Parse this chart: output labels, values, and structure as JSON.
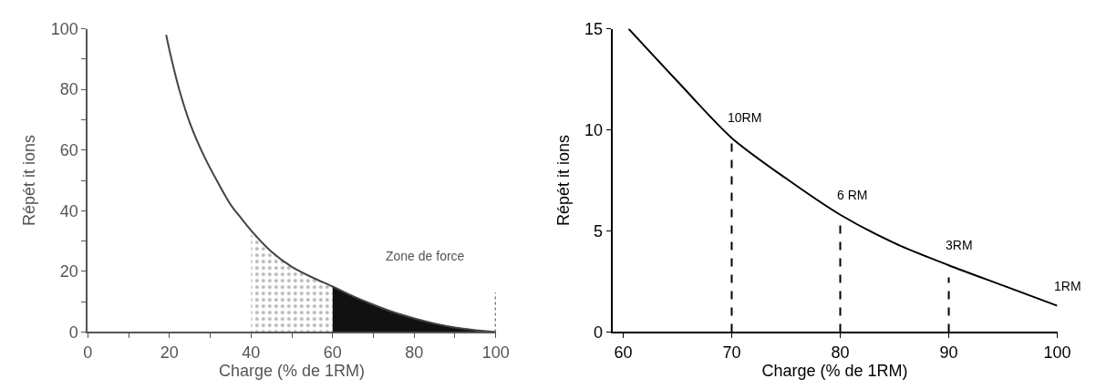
{
  "chart_data": [
    {
      "type": "line",
      "xlabel": "Charge (% de 1RM)",
      "ylabel": "Répét it ions",
      "xlim": [
        0,
        100
      ],
      "ylim": [
        0,
        100
      ],
      "xticks": [
        0,
        {
          "value": 10,
          "label": null
        },
        20,
        {
          "value": 30,
          "label": null
        },
        40,
        {
          "value": 50,
          "label": null
        },
        60,
        {
          "value": 70,
          "label": null
        },
        80,
        {
          "value": 90,
          "label": null
        },
        100
      ],
      "yticks": [
        0,
        {
          "value": 10,
          "label": null
        },
        20,
        {
          "value": 30,
          "label": null
        },
        40,
        {
          "value": 50,
          "label": null
        },
        60,
        {
          "value": 70,
          "label": null
        },
        80,
        {
          "value": 90,
          "label": null
        },
        100
      ],
      "series": [
        {
          "type": "area",
          "color": "#707070",
          "line_style": "dotted",
          "x": [
            40,
            45,
            50,
            55,
            60
          ],
          "values": [
            33.5,
            26.5,
            21.5,
            18,
            15
          ]
        },
        {
          "type": "area",
          "color": "#111111",
          "x": [
            60,
            65,
            70,
            75,
            80,
            85,
            90,
            95,
            100
          ],
          "values": [
            15,
            11.8,
            9,
            6.5,
            4.5,
            2.8,
            1.5,
            0.6,
            0
          ]
        },
        {
          "type": "line",
          "color": "#444444",
          "x": [
            19.2,
            20,
            22.4,
            25,
            28.5,
            32,
            35,
            37.3,
            40,
            45,
            50,
            55,
            60,
            65,
            70,
            75,
            80,
            85,
            90,
            95,
            100
          ],
          "values": [
            98,
            93,
            80,
            69,
            58,
            49,
            42,
            38,
            33.5,
            26.5,
            21.5,
            18,
            15,
            11.8,
            9,
            6.5,
            4.5,
            2.8,
            1.5,
            0.6,
            0
          ]
        },
        {
          "type": "line",
          "color": "#444444",
          "line_style": "dotted",
          "x": [
            100,
            100
          ],
          "values": [
            0,
            13
          ]
        }
      ],
      "annotations": [
        "Zone de force"
      ]
    },
    {
      "type": "line",
      "xlabel": "Charge (% de 1RM)",
      "ylabel": "Répét it ions",
      "xlim": [
        59,
        100
      ],
      "ylim": [
        0,
        15
      ],
      "xticks": [
        60,
        70,
        80,
        90,
        100
      ],
      "yticks": [
        0,
        5,
        10,
        15
      ],
      "series": [
        {
          "type": "line",
          "color": "#000000",
          "x": [
            60.5,
            65,
            70,
            75,
            80,
            85,
            90,
            95,
            100
          ],
          "values": [
            15,
            12.4,
            9.6,
            7.6,
            5.8,
            4.4,
            3.3,
            2.3,
            1.3
          ]
        },
        {
          "type": "line",
          "color": "#000000",
          "line_style": "dashed",
          "x": [
            70,
            70
          ],
          "values": [
            0,
            9.4
          ]
        },
        {
          "type": "line",
          "color": "#000000",
          "line_style": "dashed",
          "x": [
            80,
            80
          ],
          "values": [
            0,
            5.3
          ]
        },
        {
          "type": "line",
          "color": "#000000",
          "line_style": "dashed",
          "x": [
            90,
            90
          ],
          "values": [
            0,
            2.7
          ]
        }
      ],
      "annotations": [
        {
          "text": "10RM",
          "x": 70,
          "y": 9.6
        },
        {
          "text": "6 RM",
          "x": 80,
          "y": 5.8
        },
        {
          "text": "3RM",
          "x": 90,
          "y": 3.3
        },
        {
          "text": "1RM",
          "x": 100,
          "y": 1.3
        }
      ]
    }
  ]
}
